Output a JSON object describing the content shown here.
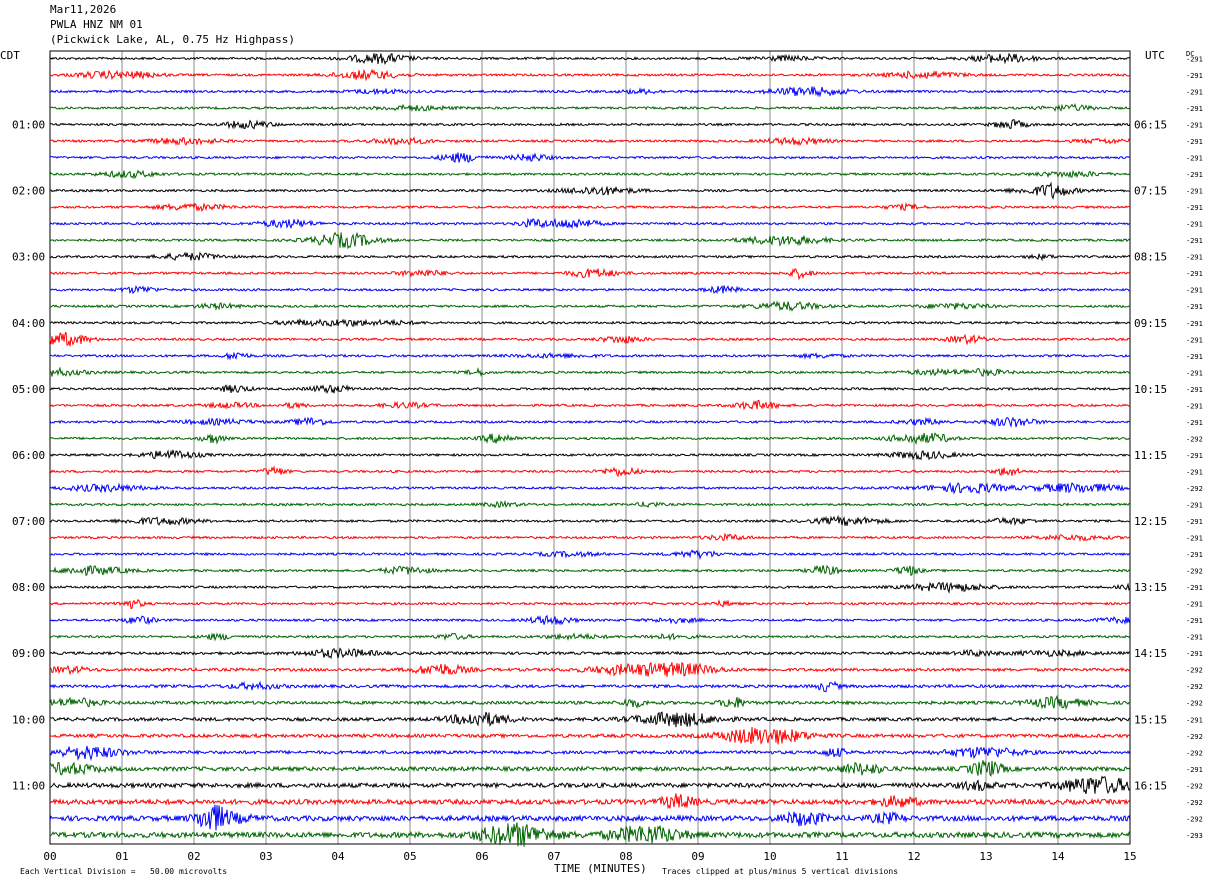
{
  "header": {
    "date": "Mar11,2026",
    "station": "PWLA HNZ NM 01",
    "location": "(Pickwick Lake, AL, 0.75 Hz Highpass)"
  },
  "left_zone": "CDT",
  "right_zone": "UTC",
  "dc_header": "DC",
  "footer": {
    "scale": "Each Vertical Division =   50.00 microvolts",
    "xlabel": "TIME (MINUTES)",
    "clip_note": "Traces clipped at plus/minus 5 vertical divisions"
  },
  "colors": {
    "trace": [
      "#000000",
      "#ff0000",
      "#0000ff",
      "#006400"
    ],
    "grid": "#888888",
    "frame": "#000000"
  },
  "chart_data": {
    "type": "line",
    "plot_kind": "helicorder",
    "xlabel": "TIME (MINUTES)",
    "x_ticks": [
      "00",
      "01",
      "02",
      "03",
      "04",
      "05",
      "06",
      "07",
      "08",
      "09",
      "10",
      "11",
      "12",
      "13",
      "14",
      "15"
    ],
    "xlim": [
      0,
      15
    ],
    "rows_per_hour": 4,
    "minutes_per_row": 15,
    "left_labels": [
      {
        "row": 4,
        "text": "01:00"
      },
      {
        "row": 8,
        "text": "02:00"
      },
      {
        "row": 12,
        "text": "03:00"
      },
      {
        "row": 16,
        "text": "04:00"
      },
      {
        "row": 20,
        "text": "05:00"
      },
      {
        "row": 24,
        "text": "06:00"
      },
      {
        "row": 28,
        "text": "07:00"
      },
      {
        "row": 32,
        "text": "08:00"
      },
      {
        "row": 36,
        "text": "09:00"
      },
      {
        "row": 40,
        "text": "10:00"
      },
      {
        "row": 44,
        "text": "11:00"
      }
    ],
    "right_labels": [
      {
        "row": 4,
        "text": "06:15"
      },
      {
        "row": 8,
        "text": "07:15"
      },
      {
        "row": 12,
        "text": "08:15"
      },
      {
        "row": 16,
        "text": "09:15"
      },
      {
        "row": 20,
        "text": "10:15"
      },
      {
        "row": 24,
        "text": "11:15"
      },
      {
        "row": 28,
        "text": "12:15"
      },
      {
        "row": 32,
        "text": "13:15"
      },
      {
        "row": 36,
        "text": "14:15"
      },
      {
        "row": 40,
        "text": "15:15"
      },
      {
        "row": 44,
        "text": "16:15"
      }
    ],
    "dc_offsets": [
      "-291",
      "-291",
      "-291",
      "-291",
      "-291",
      "-291",
      "-291",
      "-291",
      "-291",
      "-291",
      "-291",
      "-291",
      "-291",
      "-291",
      "-291",
      "-291",
      "-291",
      "-291",
      "-291",
      "-291",
      "-291",
      "-291",
      "-291",
      "-292",
      "-291",
      "-291",
      "-292",
      "-291",
      "-291",
      "-291",
      "-291",
      "-292",
      "-291",
      "-291",
      "-291",
      "-291",
      "-291",
      "-292",
      "-292",
      "-292",
      "-291",
      "-292",
      "-292",
      "-291",
      "-292",
      "-292",
      "-292",
      "-293"
    ],
    "noise_level": [
      1,
      1,
      1,
      1,
      1,
      1,
      1,
      1,
      1,
      1,
      1,
      1,
      1,
      1,
      1,
      1,
      1,
      1,
      1,
      1,
      1,
      1,
      1,
      1,
      1,
      1,
      1,
      1,
      1,
      1,
      1,
      1,
      1,
      1,
      1,
      1,
      1.2,
      1.3,
      1.3,
      1.4,
      1.5,
      1.5,
      1.4,
      1.8,
      2,
      2.2,
      2.3,
      2.4
    ],
    "num_rows": 48
  }
}
